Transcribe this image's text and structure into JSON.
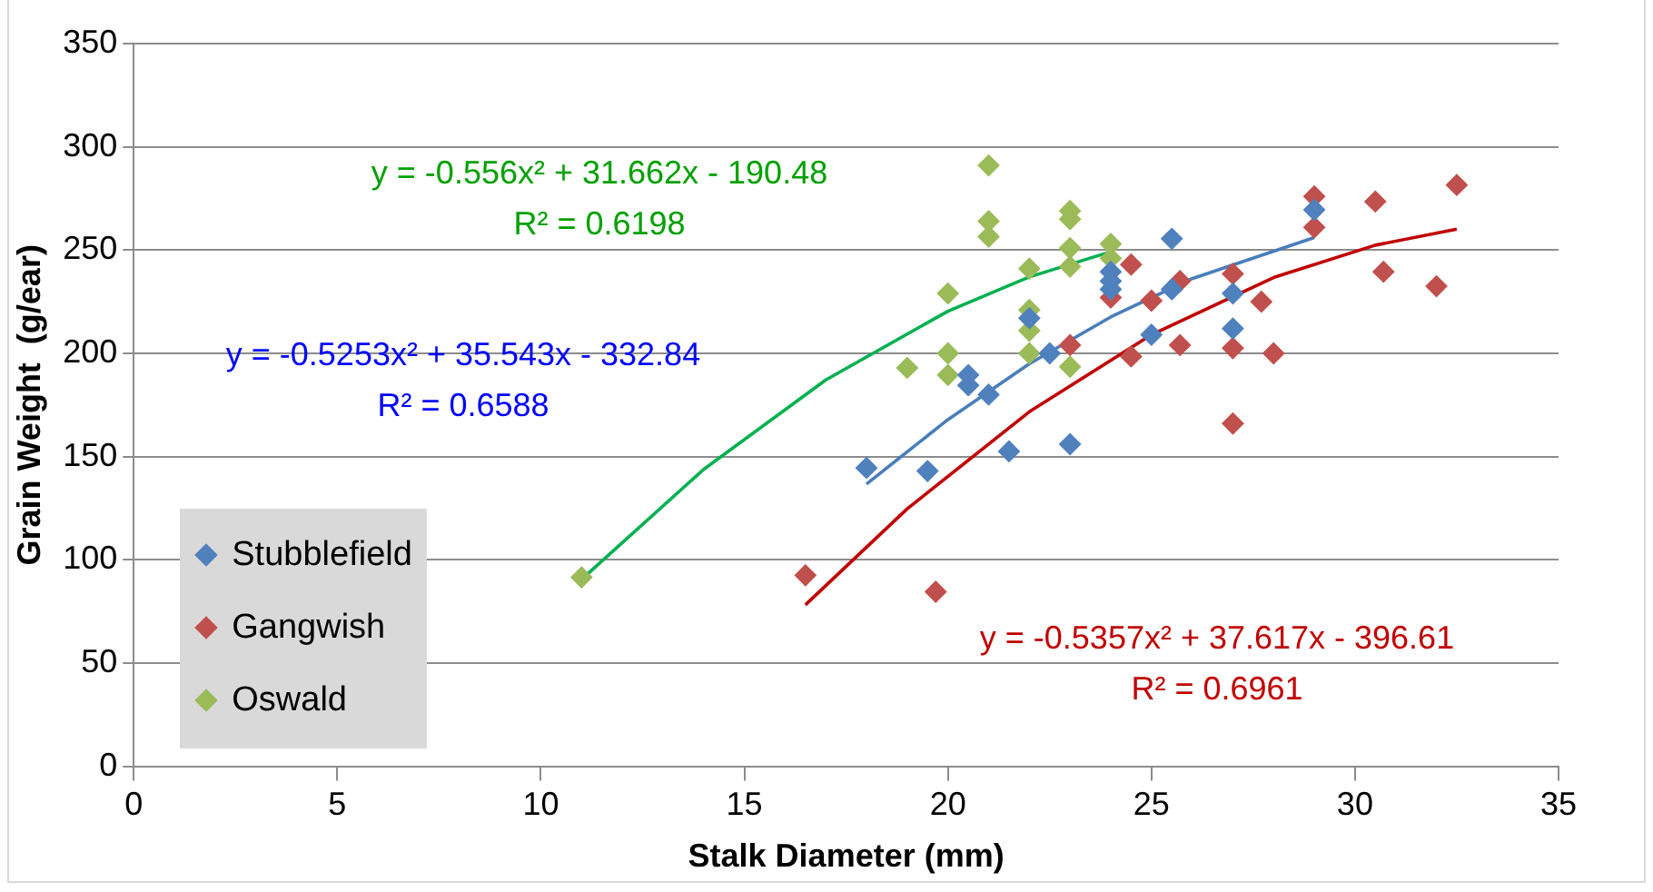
{
  "chart_data": {
    "type": "scatter",
    "xlabel": "Stalk Diameter (mm)",
    "ylabel": "Grain Weight  (g/ear)",
    "xlim": [
      0,
      35
    ],
    "xticks": [
      0,
      5,
      10,
      15,
      20,
      25,
      30,
      35
    ],
    "ylim": [
      0,
      350
    ],
    "yticks": [
      0,
      50,
      100,
      150,
      200,
      250,
      300,
      350
    ],
    "grid": "y",
    "legend": "bottom left",
    "marker": "diamond",
    "series": [
      {
        "name": "Stubblefield",
        "color": "#4f81bd",
        "x": [
          18,
          19.5,
          20.5,
          20.5,
          21,
          21.5,
          22,
          22.5,
          23,
          24,
          24,
          24,
          25,
          25.5,
          25.5,
          27,
          27,
          29
        ],
        "values": [
          144.5,
          143,
          189.5,
          184.5,
          180,
          152.5,
          217,
          200,
          156,
          239.5,
          235,
          231,
          209,
          255.5,
          231,
          229,
          212,
          269.5
        ]
      },
      {
        "name": "Gangwish",
        "color": "#c0504d",
        "x": [
          16.5,
          19.7,
          23,
          24,
          24.5,
          24.5,
          25,
          25.7,
          25.7,
          27,
          27,
          27,
          27.7,
          28,
          29,
          29,
          30.5,
          30.7,
          32,
          32.5
        ],
        "values": [
          92.5,
          84.5,
          204,
          227,
          243,
          198.5,
          225.5,
          235,
          204,
          238.5,
          202.5,
          166,
          225,
          200,
          276,
          261,
          273.5,
          239.5,
          232.5,
          281.5
        ]
      },
      {
        "name": "Oswald",
        "color": "#9bbb59",
        "x": [
          11,
          19,
          20,
          20,
          20,
          21,
          21,
          21,
          22,
          22,
          22,
          22,
          23,
          23,
          23,
          23,
          23,
          24,
          24
        ],
        "values": [
          91.5,
          193,
          229,
          200,
          189.5,
          291,
          264,
          256.5,
          241,
          221,
          211,
          200,
          269,
          265,
          251,
          242,
          193.5,
          253,
          246
        ]
      },
      {
        "type": "line",
        "color": "#4a7ebb",
        "marker": "none",
        "x": [
          18,
          20,
          22,
          24,
          26,
          29
        ],
        "values": [
          136.7,
          167.9,
          194.9,
          217.6,
          236.2,
          256.1
        ]
      },
      {
        "type": "line",
        "color": "#c00000",
        "marker": "none",
        "x": [
          16.5,
          19,
          22,
          25,
          28,
          30.5,
          32.5
        ],
        "values": [
          78.2,
          124.7,
          171.7,
          209,
          236.7,
          252.4,
          260.1
        ]
      },
      {
        "type": "line",
        "color": "#00b050",
        "marker": "none",
        "x": [
          11,
          14,
          17,
          20,
          22,
          24
        ],
        "values": [
          90.5,
          143.8,
          187.1,
          220.4,
          237,
          249.2
        ]
      }
    ],
    "annotations": [
      "y = -0.556x² + 31.662x - 190.48",
      "R² = 0.6198",
      "y = -0.5253x² + 35.543x - 332.84",
      "R² = 0.6588",
      "y = -0.5357x² + 37.617x - 396.61",
      "R² = 0.6961"
    ]
  }
}
